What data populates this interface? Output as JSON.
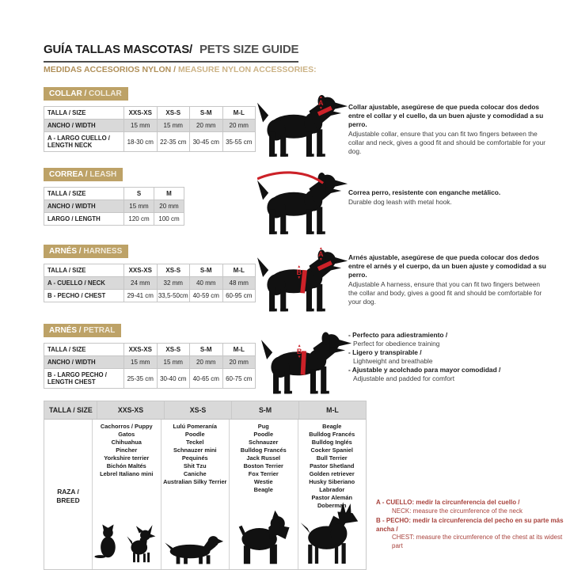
{
  "header": {
    "title_es": "GUÍA TALLAS MASCOTAS/",
    "title_en": "PETS SIZE GUIDE",
    "subtitle_es": "MEDIDAS ACCESORIOS NYLON / ",
    "subtitle_en": "MEASURE NYLON ACCESSORIES:"
  },
  "colors": {
    "accent_gold": "#bda267",
    "accent_red": "#cc2128",
    "note_red": "#a8423c",
    "row_shade": "#d9d9d9"
  },
  "icons": {
    "arrow_up": "▲",
    "arrow_down": "▼"
  },
  "sections": [
    {
      "badge_es": "COLLAR / ",
      "badge_en": "COLLAR",
      "table": {
        "header": [
          "TALLA / SIZE",
          "XXS-XS",
          "XS-S",
          "S-M",
          "M-L"
        ],
        "rows": [
          {
            "label": "ANCHO / WIDTH",
            "values": [
              "15 mm",
              "15 mm",
              "20 mm",
              "20 mm"
            ]
          },
          {
            "label": "A - LARGO CUELLO / LENGTH NECK",
            "values": [
              "18-30 cm",
              "22-35 cm",
              "30-45 cm",
              "35-55 cm"
            ]
          }
        ]
      },
      "marker": "A",
      "desc_es": "Collar ajustable, asegúrese de que pueda colocar dos dedos entre el collar y el cuello, da un buen ajuste y comodidad a su perro.",
      "desc_en": "Adjustable collar, ensure that you can fit two fingers between the collar and neck, gives a good fit and should be comfortable for your dog."
    },
    {
      "badge_es": "CORREA / ",
      "badge_en": "LEASH",
      "table": {
        "header": [
          "TALLA / SIZE",
          "S",
          "M"
        ],
        "rows": [
          {
            "label": "ANCHO / WIDTH",
            "values": [
              "15 mm",
              "20 mm"
            ]
          },
          {
            "label": "LARGO / LENGTH",
            "values": [
              "120 cm",
              "100 cm"
            ]
          }
        ]
      },
      "desc_es": "Correa perro, resistente con enganche metálico.",
      "desc_en": "Durable dog leash with metal hook."
    },
    {
      "badge_es": "ARNÉS / ",
      "badge_en": "HARNESS",
      "table": {
        "header": [
          "TALLA / SIZE",
          "XXS-XS",
          "XS-S",
          "S-M",
          "M-L"
        ],
        "rows": [
          {
            "label": "A - CUELLO / NECK",
            "values": [
              "24 mm",
              "32 mm",
              "40 mm",
              "48 mm"
            ]
          },
          {
            "label": "B - PECHO / CHEST",
            "values": [
              "29-41 cm",
              "33,5-50cm",
              "40-59 cm",
              "60-95 cm"
            ]
          }
        ]
      },
      "marker_a": "A",
      "marker_b": "B",
      "desc_es": "Arnés ajustable, asegúrese de que pueda colocar dos dedos entre el arnés y el cuerpo, da un buen ajuste y comodidad a su perro.",
      "desc_en": "Adjustable A harness, ensure that you can fit two fingers between the collar and body, gives a good fit and should be comfortable for your dog."
    },
    {
      "badge_es": "ARNÉS / ",
      "badge_en": "PETRAL",
      "table": {
        "header": [
          "TALLA / SIZE",
          "XXS-XS",
          "XS-S",
          "S-M",
          "M-L"
        ],
        "rows": [
          {
            "label": "ANCHO / WIDTH",
            "values": [
              "15 mm",
              "15 mm",
              "20 mm",
              "20 mm"
            ]
          },
          {
            "label": "B - LARGO PECHO / LENGTH CHEST",
            "values": [
              "25-35 cm",
              "30-40 cm",
              "40-65 cm",
              "60-75 cm"
            ]
          }
        ]
      },
      "marker": "B",
      "bullets": [
        {
          "es": "- Perfecto para adiestramiento /",
          "en": "Perfect for obedience training"
        },
        {
          "es": "- Ligero y transpirable /",
          "en": "Lightweight and breathable"
        },
        {
          "es": "- Ajustable y acolchado para mayor comodidad /",
          "en": "Adjustable and padded for comfort"
        }
      ]
    }
  ],
  "breed_table": {
    "header": [
      "TALLA /  SIZE",
      "XXS-XS",
      "XS-S",
      "S-M",
      "M-L"
    ],
    "row_label_es": "RAZA /",
    "row_label_en": "BREED",
    "columns": [
      {
        "breeds": [
          "Cachorros / Puppy",
          "Gatos",
          "Chihuahua",
          "Pincher",
          "Yorkshire terrier",
          "Bichón Maltés",
          "Lebrel Italiano mini"
        ]
      },
      {
        "breeds": [
          "Lulú Pomeranía",
          "Poodle",
          "Teckel",
          "Schnauzer mini",
          "Pequinés",
          "Shit Tzu",
          "Caniche",
          "Australian Silky Terrier"
        ]
      },
      {
        "breeds": [
          "Pug",
          "Poodle",
          "Schnauzer",
          "Bulldog Francés",
          "Jack Russel",
          "Boston Terrier",
          "Fox Terrier",
          "Westie",
          "Beagle"
        ]
      },
      {
        "breeds": [
          "Beagle",
          "Bulldog Francés",
          "Bulldog Inglés",
          "Cocker Spaniel",
          "Bull Terrier",
          "Pastor Shetland",
          "Golden retriever",
          "Husky Siberiano",
          "Labrador",
          "Pastor Alemán",
          "Doberman"
        ]
      }
    ]
  },
  "notes": [
    {
      "es": "A - CUELLO: medir la circunferencia del cuello /",
      "en": "NECK: measure the circumference of the neck"
    },
    {
      "es": "B - PECHO: medir la circunferencia del pecho en su parte más ancha /",
      "en": "CHEST: measure the circumference of the chest at its widest part"
    }
  ]
}
